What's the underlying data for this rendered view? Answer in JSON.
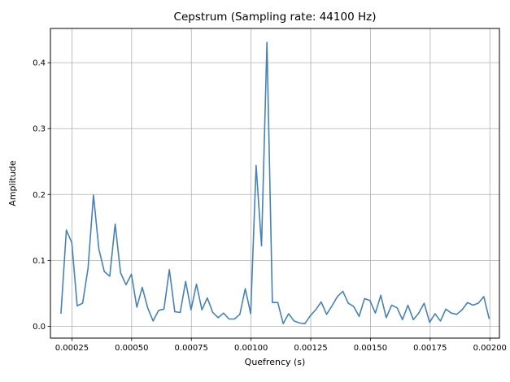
{
  "chart_data": {
    "type": "line",
    "title": "Cepstrum (Sampling rate: 44100 Hz)",
    "xlabel": "Quefrency (s)",
    "ylabel": "Amplitude",
    "xlim": [
      0.00016,
      0.00204
    ],
    "ylim": [
      -0.018,
      0.452
    ],
    "grid": true,
    "x_ticks": [
      0.00025,
      0.0005,
      0.00075,
      0.001,
      0.00125,
      0.0015,
      0.00175,
      0.002
    ],
    "x_tick_labels": [
      "0.00025",
      "0.00050",
      "0.00075",
      "0.00100",
      "0.00125",
      "0.00150",
      "0.00175",
      "0.00200"
    ],
    "y_ticks": [
      0.0,
      0.1,
      0.2,
      0.3,
      0.4
    ],
    "y_tick_labels": [
      "0.0",
      "0.1",
      "0.2",
      "0.3",
      "0.4"
    ],
    "line_color": "#4682b4",
    "x_start": 0.000204,
    "x_step": 2.27e-05,
    "series": [
      {
        "values": [
          0.019,
          0.146,
          0.127,
          0.031,
          0.035,
          0.088,
          0.199,
          0.117,
          0.083,
          0.076,
          0.155,
          0.081,
          0.063,
          0.079,
          0.029,
          0.059,
          0.028,
          0.008,
          0.024,
          0.026,
          0.086,
          0.022,
          0.021,
          0.068,
          0.025,
          0.064,
          0.025,
          0.043,
          0.021,
          0.013,
          0.02,
          0.011,
          0.011,
          0.018,
          0.057,
          0.019,
          0.244,
          0.122,
          0.431,
          0.036,
          0.036,
          0.004,
          0.019,
          0.008,
          0.005,
          0.004,
          0.016,
          0.025,
          0.037,
          0.018,
          0.031,
          0.045,
          0.053,
          0.035,
          0.03,
          0.015,
          0.042,
          0.039,
          0.02,
          0.047,
          0.013,
          0.032,
          0.028,
          0.01,
          0.032,
          0.01,
          0.02,
          0.035,
          0.006,
          0.019,
          0.008,
          0.026,
          0.02,
          0.018,
          0.025,
          0.036,
          0.032,
          0.035,
          0.045,
          0.011
        ]
      }
    ]
  }
}
